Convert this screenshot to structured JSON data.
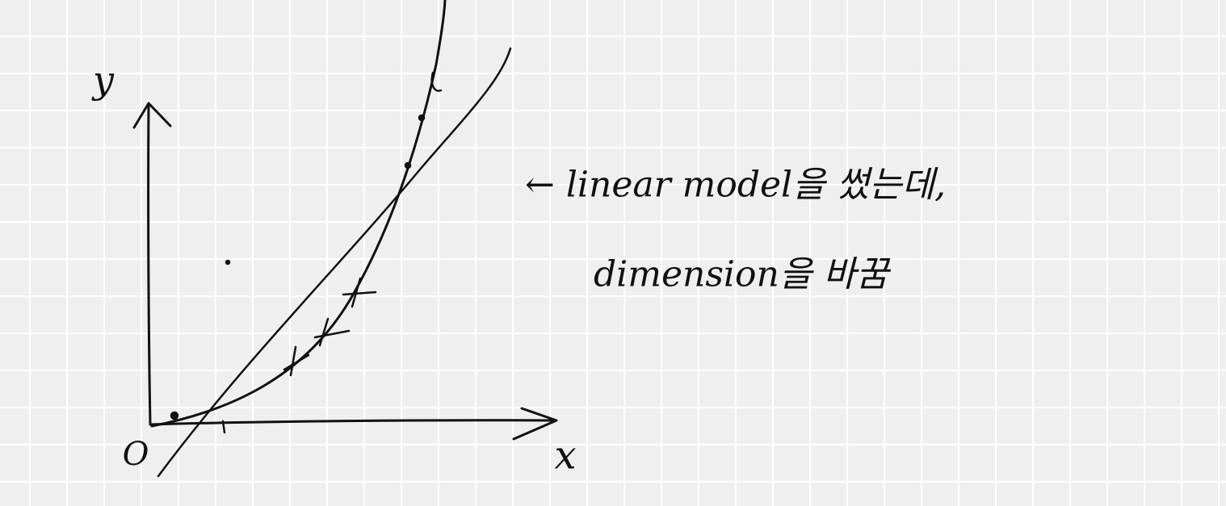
{
  "axis_labels": {
    "y": "y",
    "x": "x",
    "origin": "O"
  },
  "annotation": {
    "lines": [
      "← linear model을 썼는데,",
      "dimension을 바꿈"
    ]
  }
}
